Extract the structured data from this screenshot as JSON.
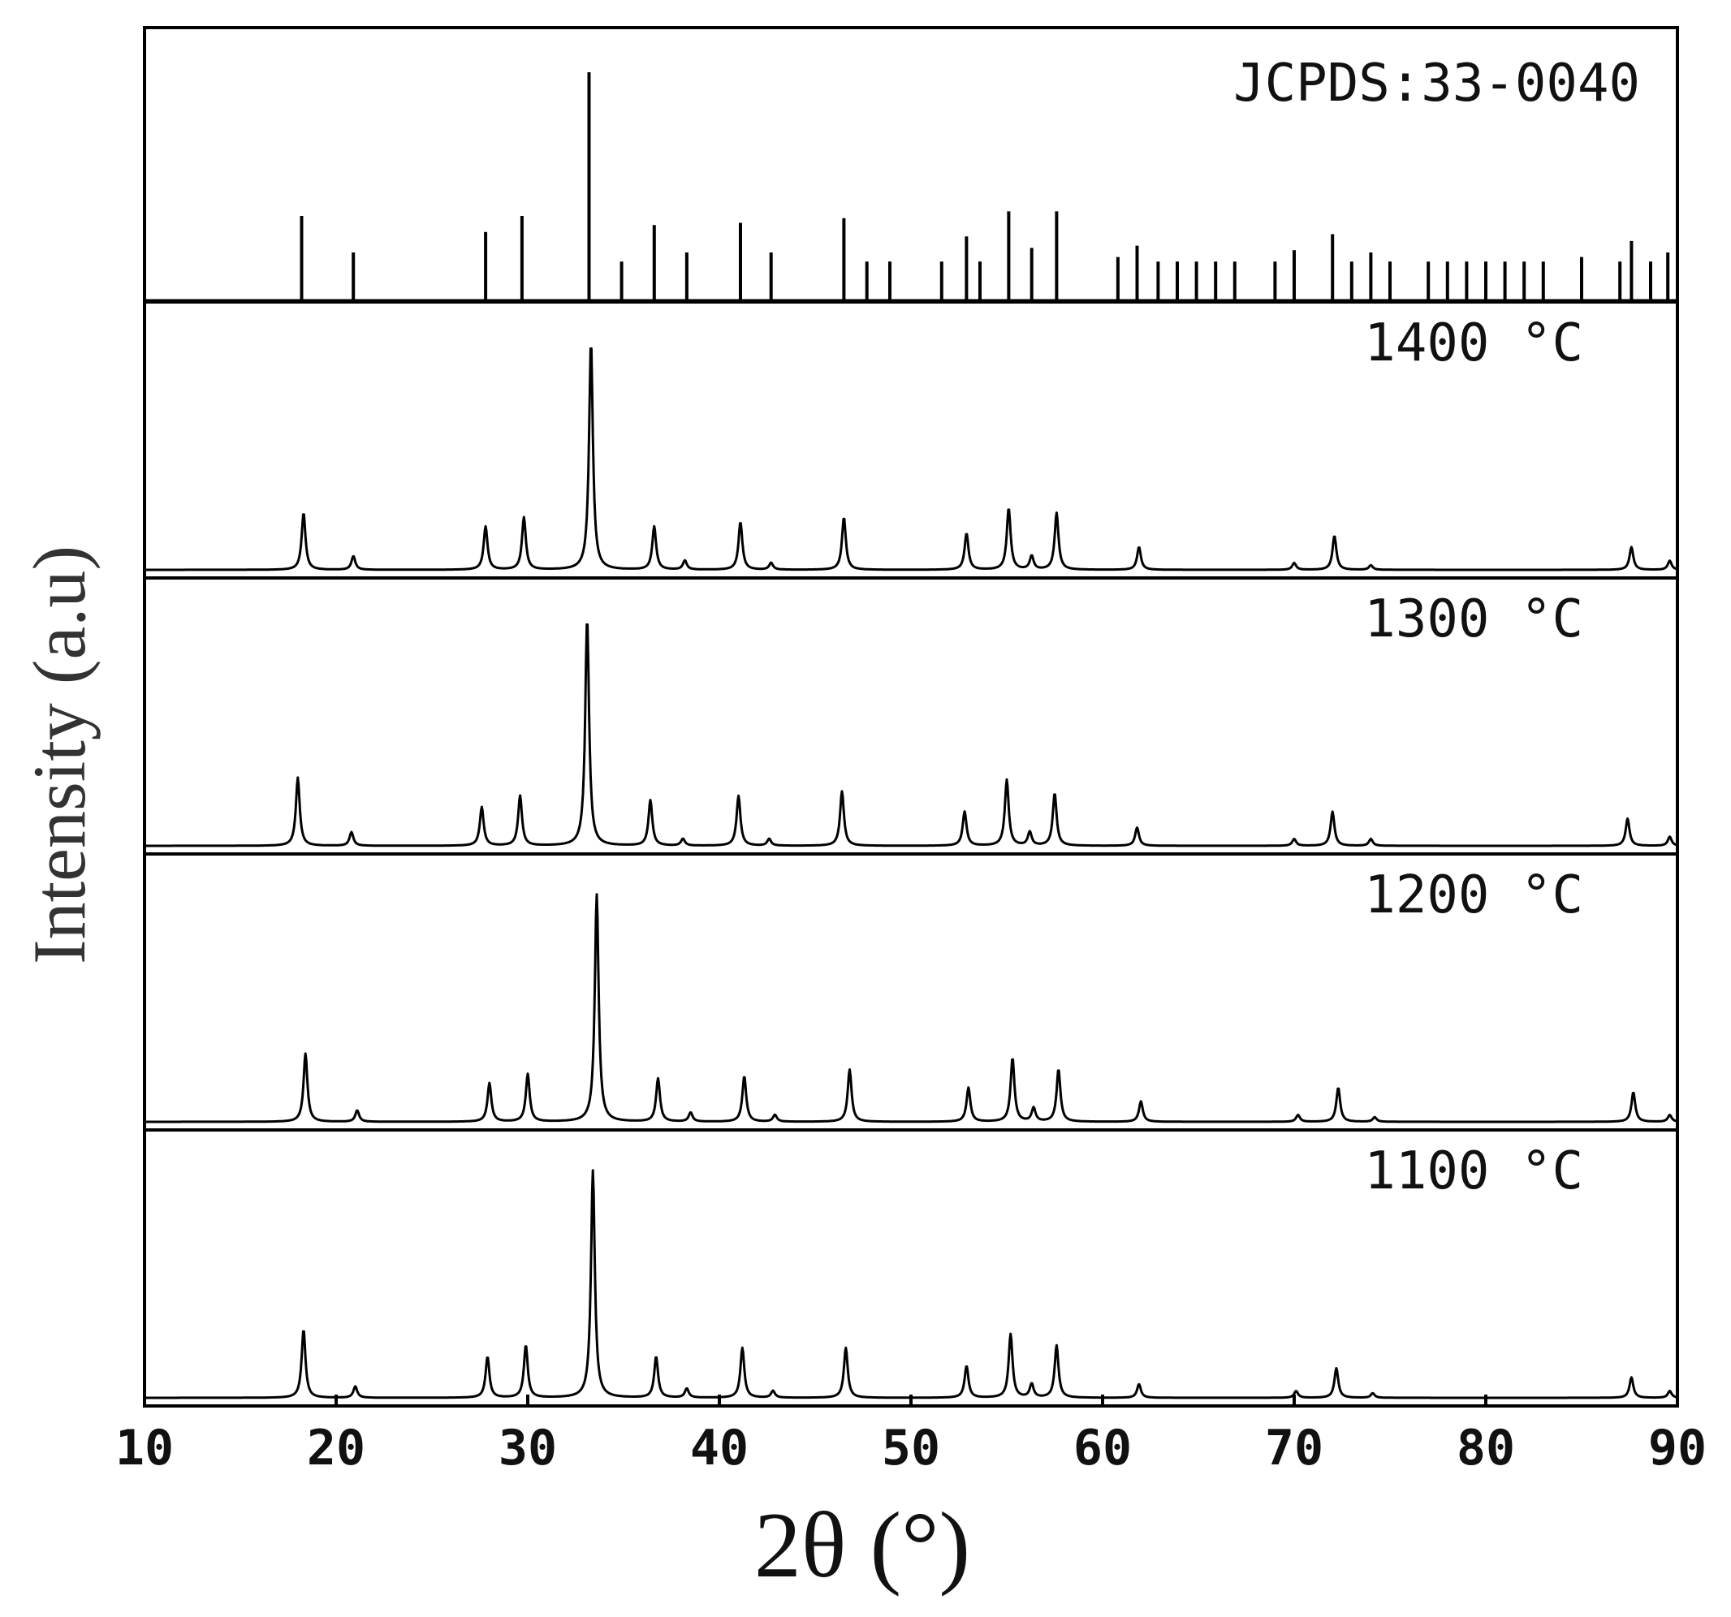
{
  "chart_data": {
    "type": "line",
    "xlabel": "2θ (°)",
    "ylabel": "Intensity (a.u)",
    "xlim": [
      10,
      90
    ],
    "xticks": [
      10,
      20,
      30,
      40,
      50,
      60,
      70,
      80,
      90
    ],
    "yticks": [],
    "grid": false,
    "line_color": "#000000",
    "reference": {
      "name": "JCPDS:33-0040",
      "type": "stick",
      "peaks": [
        [
          18.2,
          0.37
        ],
        [
          20.9,
          0.21
        ],
        [
          27.8,
          0.3
        ],
        [
          29.7,
          0.37
        ],
        [
          33.2,
          1.0
        ],
        [
          34.9,
          0.17
        ],
        [
          36.6,
          0.33
        ],
        [
          38.3,
          0.21
        ],
        [
          41.1,
          0.34
        ],
        [
          42.7,
          0.21
        ],
        [
          46.5,
          0.36
        ],
        [
          47.7,
          0.17
        ],
        [
          48.9,
          0.17
        ],
        [
          51.6,
          0.17
        ],
        [
          52.9,
          0.28
        ],
        [
          53.6,
          0.17
        ],
        [
          55.1,
          0.39
        ],
        [
          56.3,
          0.23
        ],
        [
          57.6,
          0.39
        ],
        [
          60.8,
          0.19
        ],
        [
          61.8,
          0.24
        ],
        [
          62.9,
          0.17
        ],
        [
          63.9,
          0.17
        ],
        [
          64.9,
          0.17
        ],
        [
          65.9,
          0.17
        ],
        [
          66.9,
          0.17
        ],
        [
          69.0,
          0.17
        ],
        [
          70.0,
          0.22
        ],
        [
          72.0,
          0.29
        ],
        [
          73.0,
          0.17
        ],
        [
          74.0,
          0.21
        ],
        [
          75.0,
          0.17
        ],
        [
          77.0,
          0.17
        ],
        [
          78.0,
          0.17
        ],
        [
          79.0,
          0.17
        ],
        [
          80.0,
          0.17
        ],
        [
          81.0,
          0.17
        ],
        [
          82.0,
          0.17
        ],
        [
          83.0,
          0.17
        ],
        [
          85.0,
          0.19
        ],
        [
          87.0,
          0.17
        ],
        [
          87.6,
          0.26
        ],
        [
          88.6,
          0.17
        ],
        [
          89.5,
          0.21
        ]
      ]
    },
    "series": [
      {
        "name": "1400 °C",
        "peaks": [
          [
            18.3,
            0.25
          ],
          [
            20.9,
            0.06
          ],
          [
            27.8,
            0.19
          ],
          [
            29.8,
            0.23
          ],
          [
            33.3,
            1.0
          ],
          [
            36.6,
            0.19
          ],
          [
            38.2,
            0.04
          ],
          [
            41.1,
            0.21
          ],
          [
            42.7,
            0.03
          ],
          [
            46.5,
            0.23
          ],
          [
            52.9,
            0.16
          ],
          [
            55.1,
            0.27
          ],
          [
            56.3,
            0.06
          ],
          [
            57.6,
            0.25
          ],
          [
            61.9,
            0.1
          ],
          [
            70.0,
            0.03
          ],
          [
            72.1,
            0.15
          ],
          [
            74.0,
            0.02
          ],
          [
            87.6,
            0.1
          ],
          [
            89.6,
            0.04
          ]
        ]
      },
      {
        "name": "1300 °C",
        "peaks": [
          [
            18.0,
            0.3
          ],
          [
            20.8,
            0.06
          ],
          [
            27.6,
            0.17
          ],
          [
            29.6,
            0.22
          ],
          [
            33.1,
            1.0
          ],
          [
            36.4,
            0.2
          ],
          [
            38.1,
            0.03
          ],
          [
            41.0,
            0.22
          ],
          [
            42.6,
            0.03
          ],
          [
            46.4,
            0.24
          ],
          [
            52.8,
            0.15
          ],
          [
            55.0,
            0.29
          ],
          [
            56.2,
            0.06
          ],
          [
            57.5,
            0.23
          ],
          [
            61.8,
            0.08
          ],
          [
            70.0,
            0.03
          ],
          [
            72.0,
            0.15
          ],
          [
            74.0,
            0.03
          ],
          [
            87.4,
            0.12
          ],
          [
            89.6,
            0.04
          ]
        ]
      },
      {
        "name": "1200 °C",
        "peaks": [
          [
            18.4,
            0.3
          ],
          [
            21.1,
            0.05
          ],
          [
            28.0,
            0.17
          ],
          [
            30.0,
            0.21
          ],
          [
            33.6,
            1.0
          ],
          [
            36.8,
            0.19
          ],
          [
            38.5,
            0.04
          ],
          [
            41.3,
            0.2
          ],
          [
            42.9,
            0.03
          ],
          [
            46.8,
            0.23
          ],
          [
            53.0,
            0.15
          ],
          [
            55.3,
            0.28
          ],
          [
            56.4,
            0.06
          ],
          [
            57.7,
            0.23
          ],
          [
            62.0,
            0.09
          ],
          [
            70.2,
            0.03
          ],
          [
            72.3,
            0.15
          ],
          [
            74.2,
            0.02
          ],
          [
            87.7,
            0.13
          ],
          [
            89.6,
            0.03
          ]
        ]
      },
      {
        "name": "1100 °C",
        "peaks": [
          [
            18.3,
            0.3
          ],
          [
            21.0,
            0.05
          ],
          [
            27.9,
            0.18
          ],
          [
            29.9,
            0.23
          ],
          [
            33.4,
            1.0
          ],
          [
            36.7,
            0.18
          ],
          [
            38.3,
            0.04
          ],
          [
            41.2,
            0.22
          ],
          [
            42.8,
            0.03
          ],
          [
            46.6,
            0.22
          ],
          [
            52.9,
            0.14
          ],
          [
            55.2,
            0.28
          ],
          [
            56.3,
            0.06
          ],
          [
            57.6,
            0.23
          ],
          [
            61.9,
            0.06
          ],
          [
            70.1,
            0.03
          ],
          [
            72.2,
            0.13
          ],
          [
            74.1,
            0.02
          ],
          [
            87.6,
            0.09
          ],
          [
            89.6,
            0.03
          ]
        ]
      }
    ]
  }
}
